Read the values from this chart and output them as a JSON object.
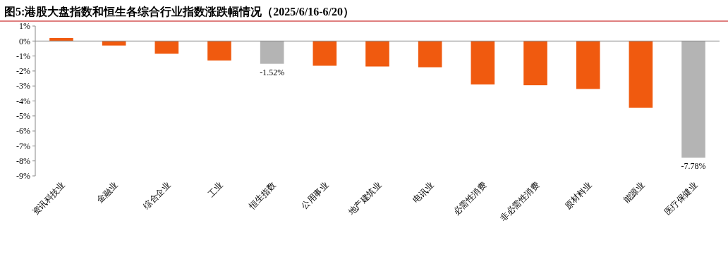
{
  "chart_data": {
    "type": "bar",
    "title": "图5:港股大盘指数和恒生各综合行业指数涨跌幅情况（2025/6/16-6/20）",
    "categories": [
      "资讯科技业",
      "金融业",
      "综合企业",
      "工业",
      "恒生指数",
      "公用事业",
      "地产建筑业",
      "电讯业",
      "必需性消费",
      "非必需性消费",
      "原材料业",
      "能源业",
      "医疗保健业"
    ],
    "values": [
      0.2,
      -0.3,
      -0.85,
      -1.3,
      -1.52,
      -1.65,
      -1.7,
      -1.75,
      -2.9,
      -2.95,
      -3.2,
      -4.45,
      -7.78
    ],
    "colors": [
      "#f05a0f",
      "#f05a0f",
      "#f05a0f",
      "#f05a0f",
      "#b4b4b4",
      "#f05a0f",
      "#f05a0f",
      "#f05a0f",
      "#f05a0f",
      "#f05a0f",
      "#f05a0f",
      "#f05a0f",
      "#b4b4b4"
    ],
    "value_labels": [
      null,
      null,
      null,
      null,
      "-1.52%",
      null,
      null,
      null,
      null,
      null,
      null,
      null,
      "-7.78%"
    ],
    "ylim": [
      -9,
      1
    ],
    "yticks": [
      {
        "value": 1,
        "label": "1%"
      },
      {
        "value": 0,
        "label": "0%"
      },
      {
        "value": -1,
        "label": "-1%"
      },
      {
        "value": -2,
        "label": "-2%"
      },
      {
        "value": -3,
        "label": "-3%"
      },
      {
        "value": -4,
        "label": "-4%"
      },
      {
        "value": -5,
        "label": "-5%"
      },
      {
        "value": -6,
        "label": "-6%"
      },
      {
        "value": -7,
        "label": "-7%"
      },
      {
        "value": -8,
        "label": "-8%"
      },
      {
        "value": -9,
        "label": "-9%"
      }
    ]
  }
}
